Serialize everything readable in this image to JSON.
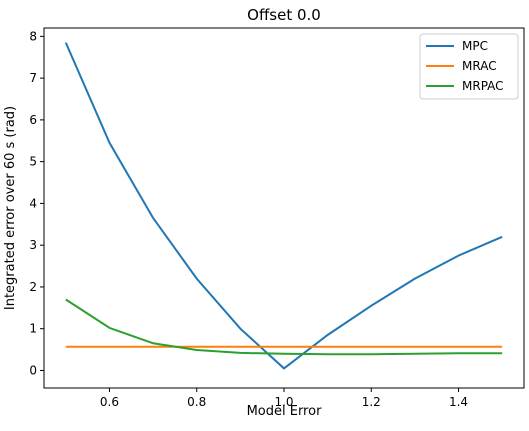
{
  "chart_data": {
    "type": "line",
    "title": "Offset 0.0",
    "xlabel": "Model Error",
    "ylabel": "Integrated error over 60 s (rad)",
    "xlim": [
      0.45,
      1.55
    ],
    "ylim": [
      -0.42,
      8.2
    ],
    "xticks": [
      0.6,
      0.8,
      1.0,
      1.2,
      1.4
    ],
    "yticks": [
      0,
      1,
      2,
      3,
      4,
      5,
      6,
      7,
      8
    ],
    "xtick_labels": [
      "0.6",
      "0.8",
      "1.0",
      "1.2",
      "1.4"
    ],
    "ytick_labels": [
      "0",
      "1",
      "2",
      "3",
      "4",
      "5",
      "6",
      "7",
      "8"
    ],
    "grid": false,
    "legend_position": "top-right",
    "x": [
      0.5,
      0.6,
      0.7,
      0.8,
      0.9,
      1.0,
      1.1,
      1.2,
      1.3,
      1.4,
      1.5
    ],
    "series": [
      {
        "name": "MPC",
        "color": "#1f77b4",
        "values": [
          7.85,
          5.45,
          3.65,
          2.2,
          1.0,
          0.05,
          0.85,
          1.55,
          2.2,
          2.75,
          3.2
        ]
      },
      {
        "name": "MRAC",
        "color": "#ff7f0e",
        "values": [
          0.57,
          0.57,
          0.57,
          0.57,
          0.57,
          0.57,
          0.57,
          0.57,
          0.57,
          0.57,
          0.57
        ]
      },
      {
        "name": "MRPAC",
        "color": "#2ca02c",
        "values": [
          1.7,
          1.02,
          0.65,
          0.49,
          0.42,
          0.4,
          0.39,
          0.39,
          0.4,
          0.41,
          0.41
        ]
      }
    ]
  }
}
